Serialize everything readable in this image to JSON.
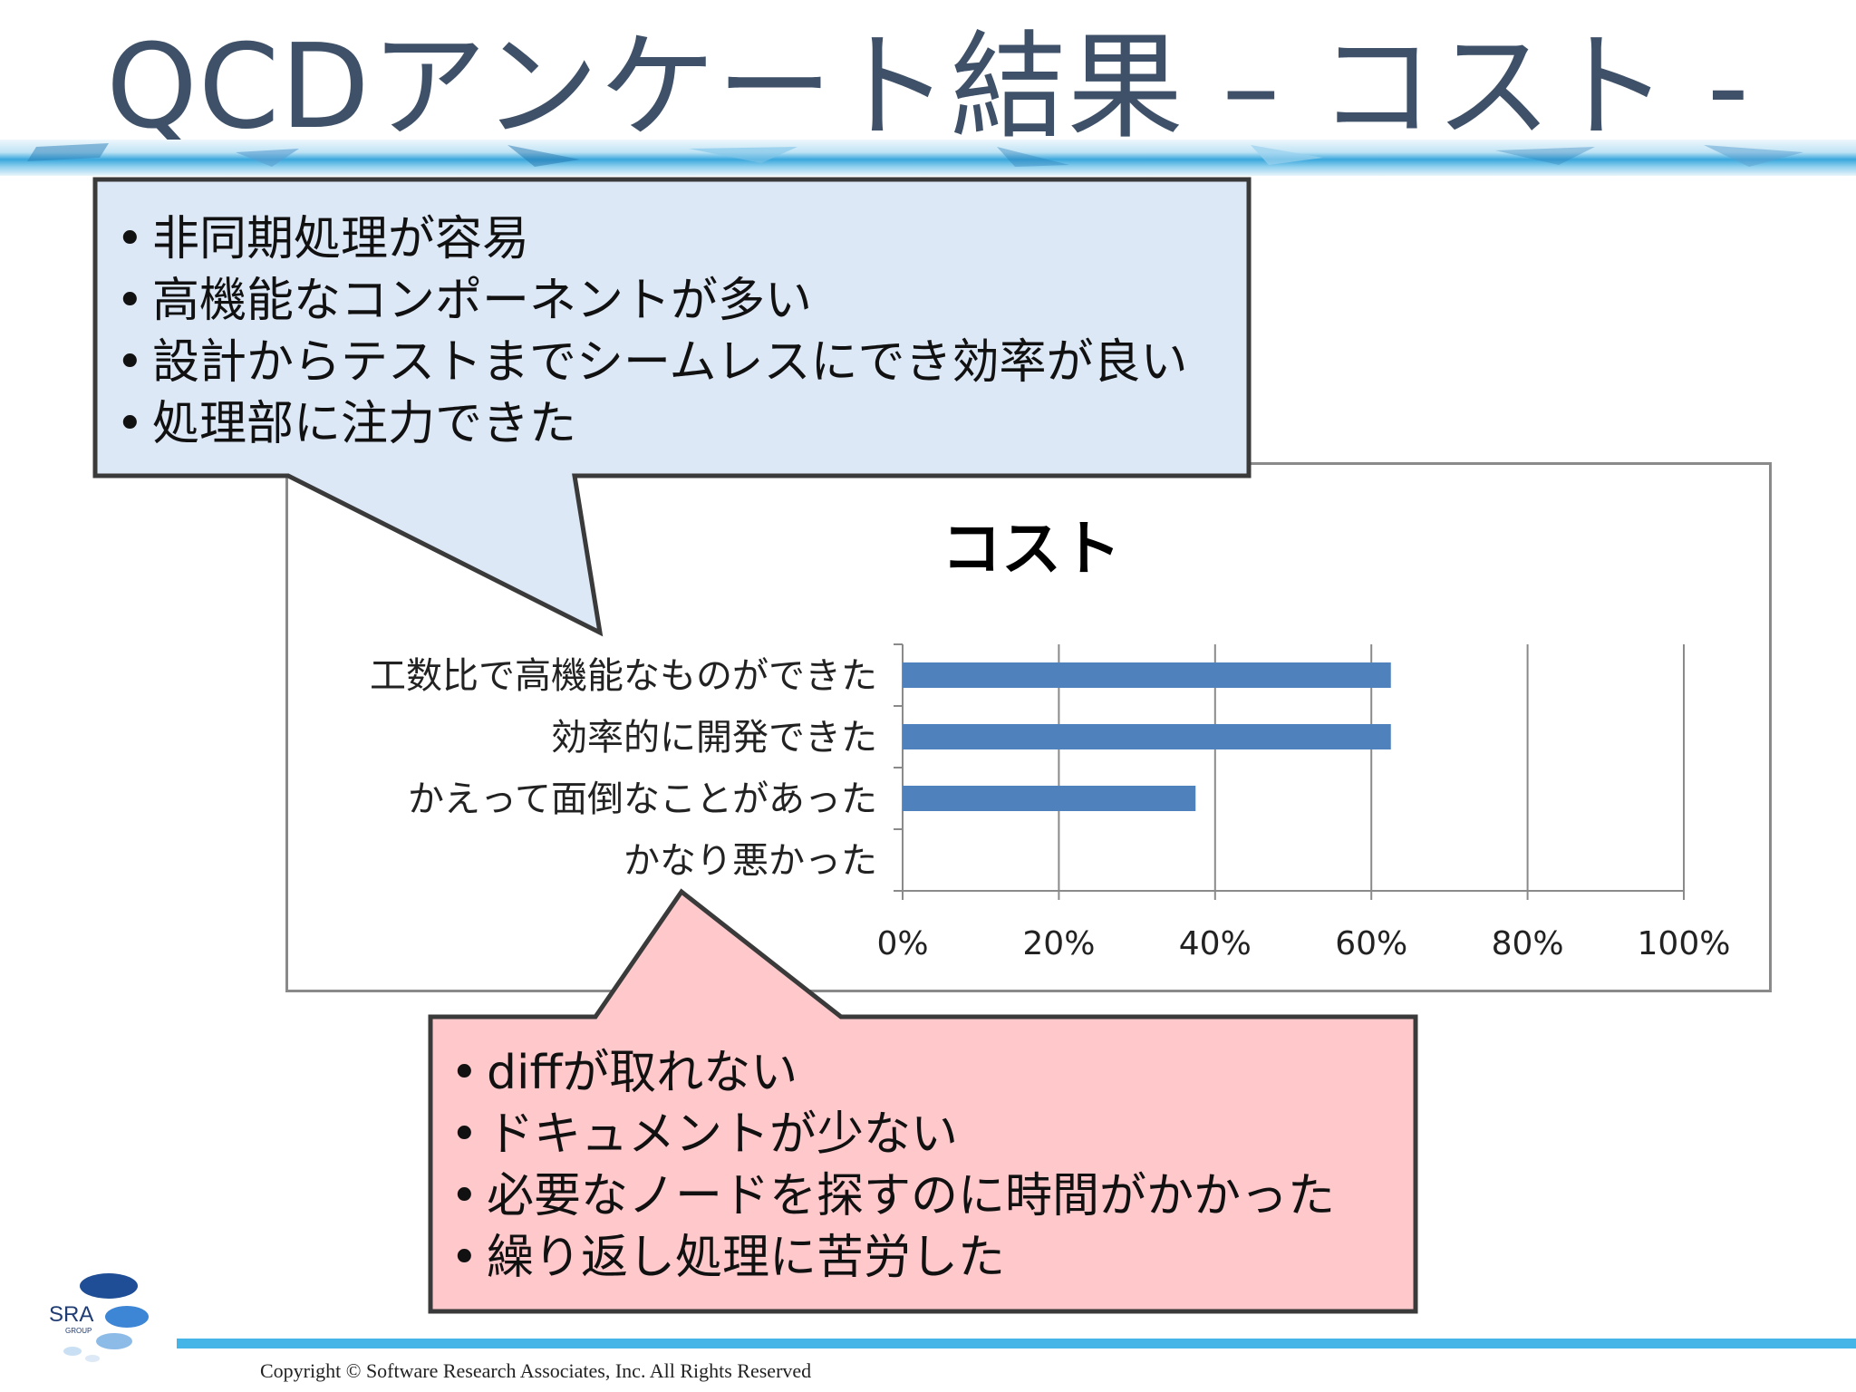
{
  "slide": {
    "title": "QCDアンケート結果 – コスト -",
    "copyright": "Copyright © Software Research Associates,  Inc. All Rights Reserved",
    "logo_text": "SRA",
    "logo_subtext": "GROUP"
  },
  "callout_top": {
    "items": [
      "非同期処理が容易",
      "高機能なコンポーネントが多い",
      "設計からテストまでシームレスにでき効率が良い",
      "処理部に注力できた"
    ],
    "fill": "#dde8f7"
  },
  "callout_bottom": {
    "items": [
      "diffが取れない",
      "ドキュメントが少ない",
      "必要なノードを探すのに時間がかかった",
      "繰り返し処理に苦労した"
    ],
    "fill": "#ffc9cc"
  },
  "chart_data": {
    "type": "bar",
    "orientation": "horizontal",
    "title": "コスト",
    "categories": [
      "工数比で高機能なものができた",
      "効率的に開発できた",
      "かえって面倒なことがあった",
      "かなり悪かった"
    ],
    "values": [
      62.5,
      62.5,
      37.5,
      0
    ],
    "xlim": [
      0,
      100
    ],
    "xticks": [
      "0%",
      "20%",
      "40%",
      "60%",
      "80%",
      "100%"
    ],
    "xtick_values": [
      0,
      20,
      40,
      60,
      80,
      100
    ],
    "grid": true,
    "bar_color": "#4f81bd"
  }
}
